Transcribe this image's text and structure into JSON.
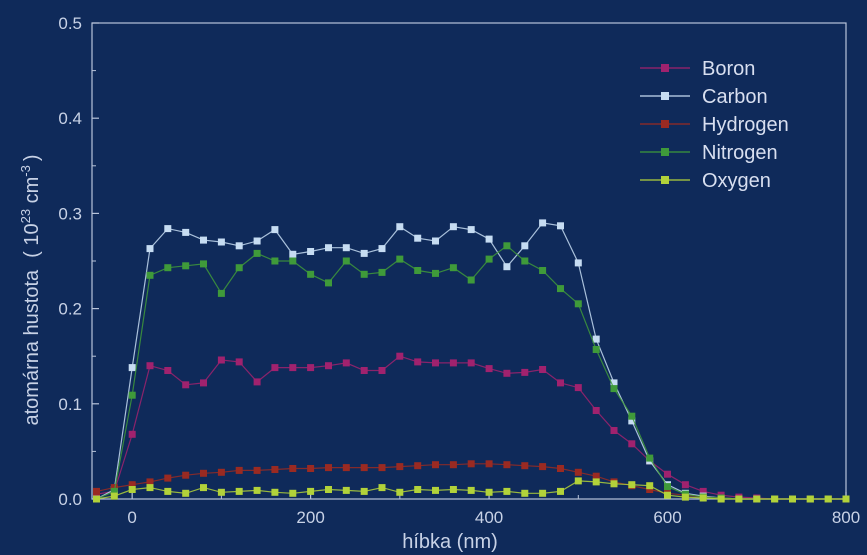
{
  "chart_data": {
    "type": "line",
    "xlabel": "híbka (nm)",
    "ylabel_main": "atomárna hustota",
    "ylabel_unit_open": "( 10",
    "ylabel_unit_exp1": "23",
    "ylabel_unit_mid": " cm",
    "ylabel_unit_exp2": "-3",
    "ylabel_unit_close": ")",
    "xlim": [
      -45,
      800
    ],
    "ylim": [
      0,
      0.5
    ],
    "xticks": [
      0,
      200,
      400,
      600,
      800
    ],
    "xtick_labels": [
      "0",
      "200",
      "400",
      "600",
      "800"
    ],
    "yticks": [
      0.0,
      0.1,
      0.2,
      0.3,
      0.4,
      0.5
    ],
    "ytick_labels": [
      "0.0",
      "0.1",
      "0.2",
      "0.3",
      "0.4",
      "0.5"
    ],
    "legend_position": "top-right",
    "grid": false,
    "x": [
      -40,
      -20,
      0,
      20,
      40,
      60,
      80,
      100,
      120,
      140,
      160,
      180,
      200,
      220,
      240,
      260,
      280,
      300,
      320,
      340,
      360,
      380,
      400,
      420,
      440,
      460,
      480,
      500,
      520,
      540,
      560,
      580,
      600,
      620,
      640,
      660,
      680,
      700,
      720,
      740,
      760,
      780,
      800
    ],
    "series": [
      {
        "name": "Boron",
        "color": "#a0226e",
        "values": [
          0.005,
          0.008,
          0.068,
          0.14,
          0.135,
          0.12,
          0.122,
          0.146,
          0.144,
          0.123,
          0.138,
          0.138,
          0.138,
          0.14,
          0.143,
          0.135,
          0.135,
          0.15,
          0.144,
          0.143,
          0.143,
          0.143,
          0.137,
          0.132,
          0.133,
          0.136,
          0.122,
          0.117,
          0.093,
          0.072,
          0.058,
          0.04,
          0.026,
          0.015,
          0.008,
          0.004,
          0.002,
          0.001,
          0.0,
          0.0,
          0.0,
          0.0,
          0.0
        ]
      },
      {
        "name": "Carbon",
        "color": "#c6dcf2",
        "values": [
          0.0,
          0.01,
          0.138,
          0.263,
          0.284,
          0.28,
          0.272,
          0.27,
          0.266,
          0.271,
          0.283,
          0.257,
          0.26,
          0.264,
          0.264,
          0.258,
          0.263,
          0.286,
          0.274,
          0.271,
          0.286,
          0.283,
          0.273,
          0.244,
          0.266,
          0.29,
          0.287,
          0.248,
          0.168,
          0.122,
          0.082,
          0.04,
          0.015,
          0.006,
          0.003,
          0.001,
          0.0,
          0.0,
          0.0,
          0.0,
          0.0,
          0.0,
          0.0
        ]
      },
      {
        "name": "Hydrogen",
        "color": "#9a2a22",
        "values": [
          0.008,
          0.012,
          0.015,
          0.018,
          0.022,
          0.025,
          0.027,
          0.028,
          0.03,
          0.03,
          0.031,
          0.032,
          0.032,
          0.033,
          0.033,
          0.033,
          0.033,
          0.034,
          0.035,
          0.036,
          0.036,
          0.037,
          0.037,
          0.036,
          0.035,
          0.034,
          0.032,
          0.028,
          0.024,
          0.018,
          0.014,
          0.01,
          0.006,
          0.004,
          0.002,
          0.001,
          0.0,
          0.0,
          0.0,
          0.0,
          0.0,
          0.0,
          0.0
        ]
      },
      {
        "name": "Nitrogen",
        "color": "#3f9a3a",
        "values": [
          0.0,
          0.008,
          0.109,
          0.235,
          0.243,
          0.245,
          0.247,
          0.216,
          0.243,
          0.258,
          0.25,
          0.25,
          0.236,
          0.227,
          0.25,
          0.236,
          0.238,
          0.252,
          0.24,
          0.237,
          0.243,
          0.23,
          0.252,
          0.266,
          0.25,
          0.24,
          0.221,
          0.205,
          0.157,
          0.116,
          0.087,
          0.043,
          0.013,
          0.005,
          0.002,
          0.001,
          0.0,
          0.0,
          0.0,
          0.0,
          0.0,
          0.0,
          0.0
        ]
      },
      {
        "name": "Oxygen",
        "color": "#b2d23a",
        "values": [
          0.0,
          0.003,
          0.01,
          0.012,
          0.008,
          0.006,
          0.012,
          0.007,
          0.008,
          0.009,
          0.007,
          0.006,
          0.008,
          0.01,
          0.009,
          0.008,
          0.012,
          0.007,
          0.01,
          0.009,
          0.01,
          0.009,
          0.007,
          0.008,
          0.006,
          0.006,
          0.008,
          0.019,
          0.018,
          0.016,
          0.015,
          0.014,
          0.004,
          0.002,
          0.001,
          0.0,
          0.0,
          0.0,
          0.0,
          0.0,
          0.0,
          0.0,
          0.0
        ]
      }
    ]
  },
  "colors": {
    "background": "#0f2a5a",
    "plot_border": "#b8c4da",
    "text": "#c8d2e6"
  }
}
